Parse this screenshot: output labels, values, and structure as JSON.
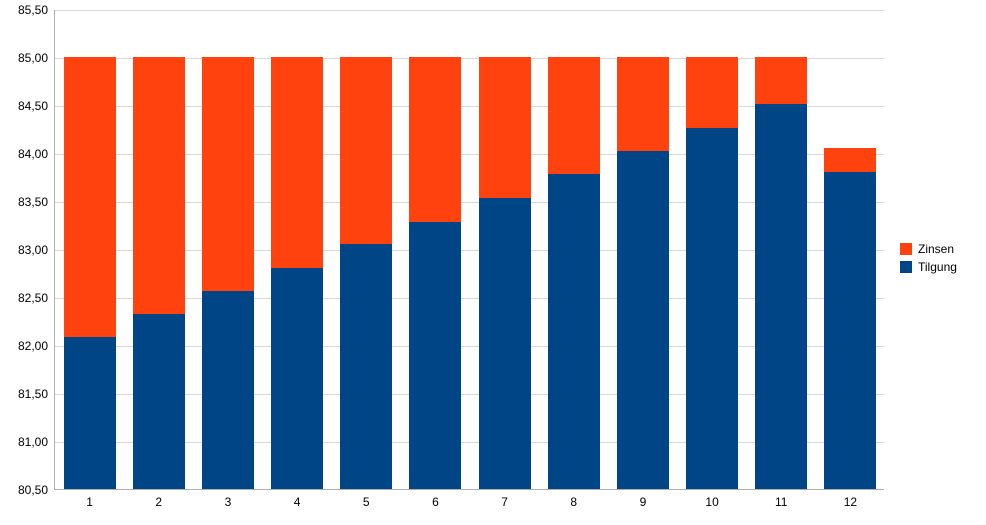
{
  "chart": {
    "type": "stacked-bar",
    "background_color": "#ffffff",
    "grid_color": "#d9d9d9",
    "axis_color": "#b0b0b0",
    "text_color": "#000000",
    "font_family": "Arial, sans-serif",
    "label_fontsize": 12,
    "ylim": [
      80.5,
      85.5
    ],
    "ytick_step": 0.5,
    "yticks": [
      "80,50",
      "81,00",
      "81,50",
      "82,00",
      "82,50",
      "83,00",
      "83,50",
      "84,00",
      "84,50",
      "85,00",
      "85,50"
    ],
    "categories": [
      "1",
      "2",
      "3",
      "4",
      "5",
      "6",
      "7",
      "8",
      "9",
      "10",
      "11",
      "12"
    ],
    "legend": {
      "items": [
        {
          "label": "Zinsen",
          "color": "#ff420e"
        },
        {
          "label": "Tilgung",
          "color": "#004586"
        }
      ]
    },
    "series": {
      "tilgung": {
        "label": "Tilgung",
        "color": "#004586"
      },
      "zinsen": {
        "label": "Zinsen",
        "color": "#ff420e"
      }
    },
    "data": [
      {
        "tilgung": 82.08,
        "zinsen": 2.92
      },
      {
        "tilgung": 82.32,
        "zinsen": 2.68
      },
      {
        "tilgung": 82.56,
        "zinsen": 2.44
      },
      {
        "tilgung": 82.8,
        "zinsen": 2.2
      },
      {
        "tilgung": 83.05,
        "zinsen": 1.95
      },
      {
        "tilgung": 83.28,
        "zinsen": 1.72
      },
      {
        "tilgung": 83.53,
        "zinsen": 1.47
      },
      {
        "tilgung": 83.78,
        "zinsen": 1.22
      },
      {
        "tilgung": 84.02,
        "zinsen": 0.98
      },
      {
        "tilgung": 84.26,
        "zinsen": 0.74
      },
      {
        "tilgung": 84.51,
        "zinsen": 0.49
      },
      {
        "tilgung": 83.8,
        "zinsen": 0.25
      }
    ],
    "bar_width_ratio": 0.75
  }
}
